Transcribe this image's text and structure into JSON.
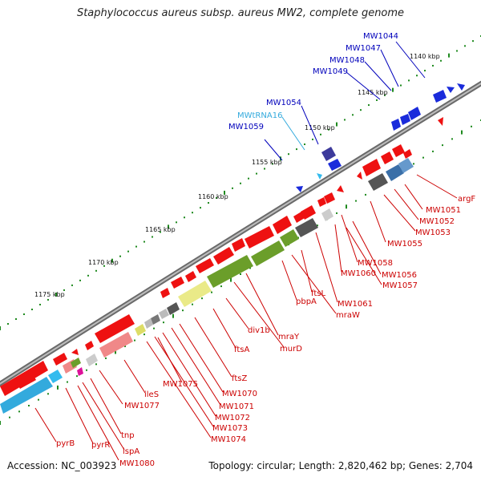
{
  "title": "Staphylococcus aureus subsp. aureus MW2, complete genome",
  "footer": {
    "accession": "Accession: NC_003923",
    "info": "Topology: circular; Length: 2,820,462 bp; Genes: 2,704"
  },
  "colors": {
    "backbone": "#888888",
    "tick": "#1f8a1f",
    "forward_label": "#0000bb",
    "trna_label": "#33aadd",
    "reverse_label": "#cc0000"
  },
  "scale_ticks": [
    "1140 kbp",
    "1145 kbp",
    "1150 kbp",
    "1155 kbp",
    "1160 kbp",
    "1165 kbp",
    "1170 kbp",
    "1175 kbp"
  ],
  "forward_labels": [
    "MW1044",
    "MW1047",
    "MW1048",
    "MW1049",
    "MW1054",
    "MWtRNA16",
    "MW1059"
  ],
  "reverse_labels": [
    "argF",
    "MW1051",
    "MW1052",
    "MW1053",
    "MW1055",
    "MW1058",
    "MW1056",
    "MW1060",
    "MW1057",
    "MW1061",
    "ftsL",
    "mraW",
    "pbpA",
    "mraY",
    "murD",
    "div1b",
    "ftsA",
    "ftsZ",
    "MW1075",
    "MW1070",
    "MW1071",
    "MW1072",
    "MW1073",
    "MW1074",
    "ileS",
    "MW1077",
    "tnp",
    "pyrR",
    "lspA",
    "MW1080",
    "pyrB"
  ]
}
